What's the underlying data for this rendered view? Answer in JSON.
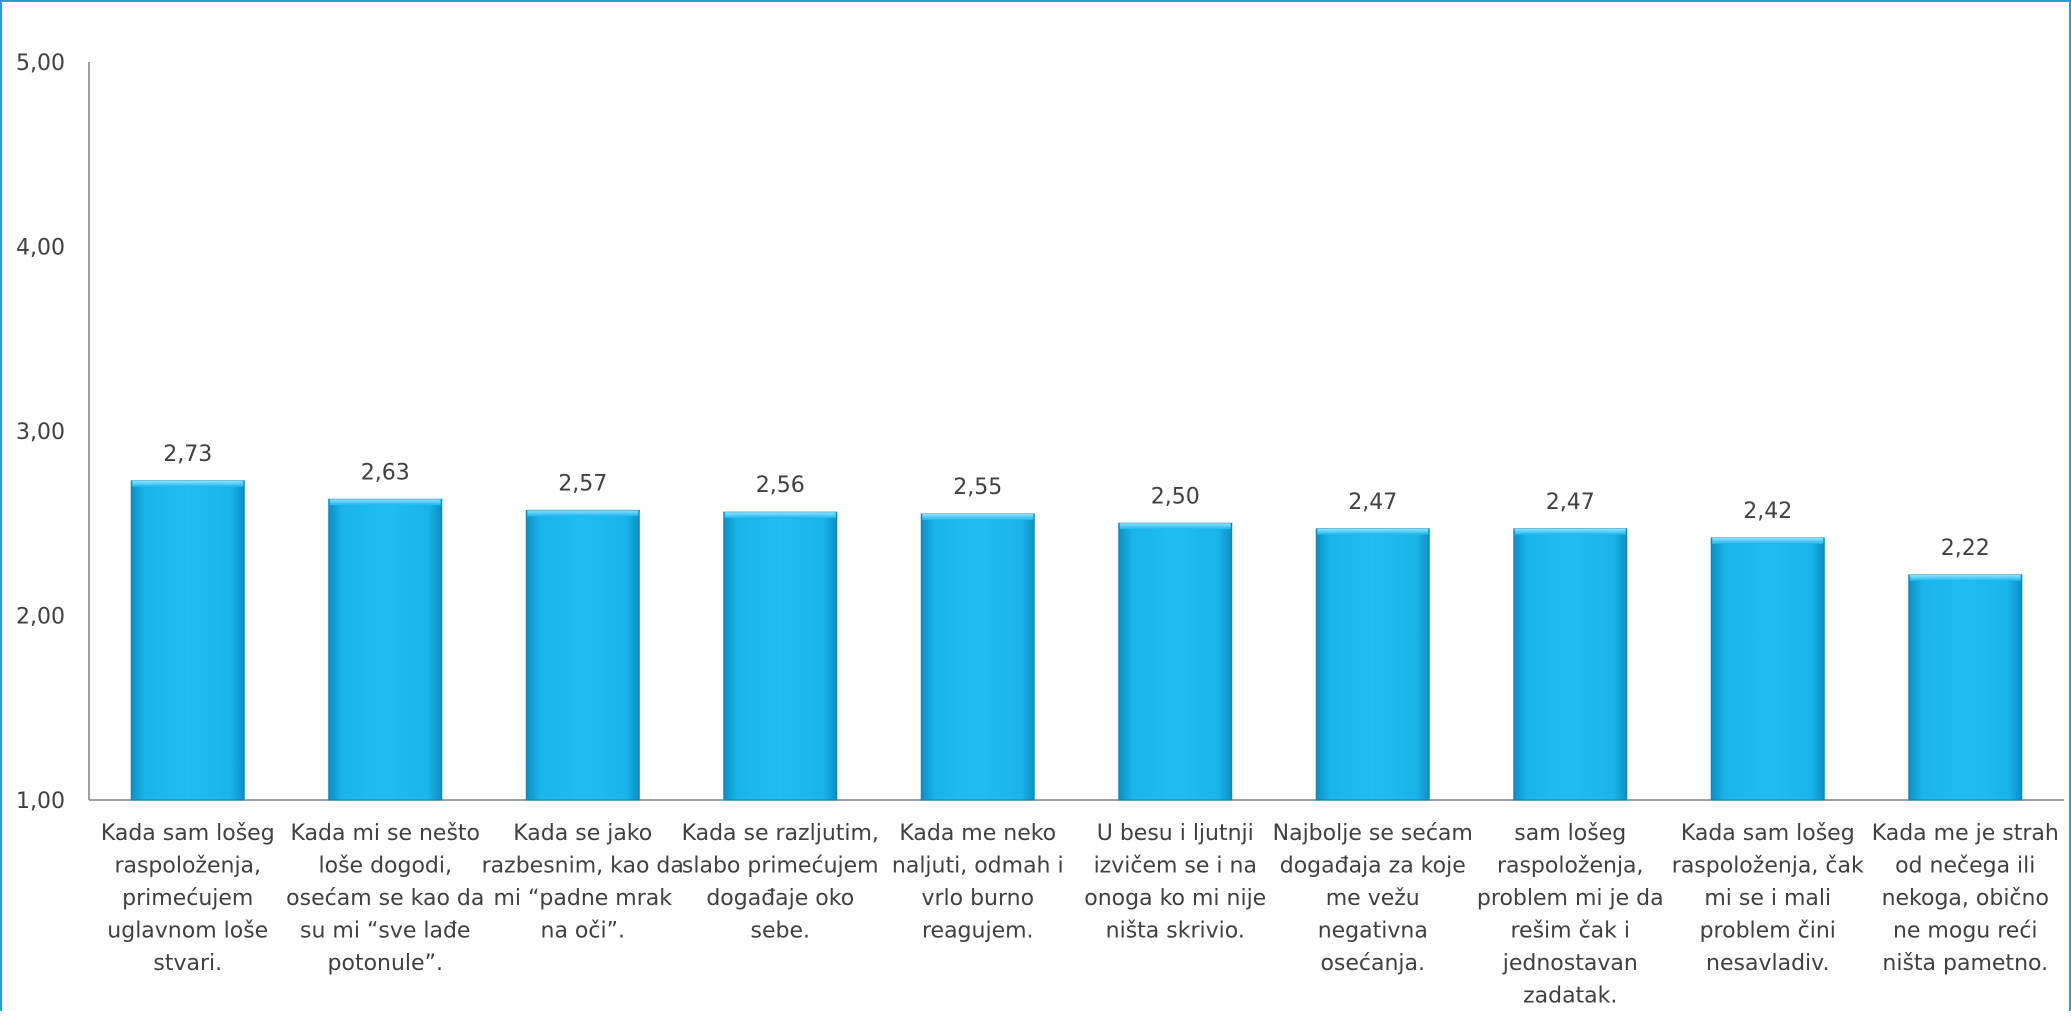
{
  "chart_data": {
    "type": "bar",
    "title": "",
    "xlabel": "",
    "ylabel": "",
    "ylim": [
      1,
      5
    ],
    "y_ticks": [
      "1,00",
      "2,00",
      "3,00",
      "4,00",
      "5,00"
    ],
    "grid": false,
    "legend": "none",
    "bar_color": "#19b5ea",
    "categories": [
      [
        "Kada sam lošeg",
        "raspoloženja,",
        "primećujem",
        "uglavnom loše",
        "stvari."
      ],
      [
        "Kada mi se nešto",
        "loše dogodi,",
        "osećam se kao da",
        "su mi “sve lađe",
        "potonule”."
      ],
      [
        "Kada se jako",
        "razbesnim, kao da",
        "mi “padne mrak",
        "na oči”."
      ],
      [
        "Kada se razljutim,",
        "slabo primećujem",
        "događaje oko",
        "sebe."
      ],
      [
        "Kada me neko",
        "naljuti, odmah i",
        "vrlo burno",
        "reagujem."
      ],
      [
        "U besu i ljutnji",
        "izvičem se i na",
        "onoga ko mi nije",
        "ništa skrivio."
      ],
      [
        "Najbolje se sećam",
        "događaja za koje",
        "me vežu",
        "negativna",
        "osećanja."
      ],
      [
        "sam lošeg",
        "raspoloženja,",
        "problem mi je da",
        "rešim čak i",
        "jednostavan",
        "zadatak."
      ],
      [
        "Kada sam lošeg",
        "raspoloženja, čak",
        "mi se i mali",
        "problem čini",
        "nesavladiv."
      ],
      [
        "Kada me je strah",
        "od nečega ili",
        "nekoga, obično",
        "ne mogu reći",
        "ništa pametno."
      ]
    ],
    "values": [
      2.73,
      2.63,
      2.57,
      2.56,
      2.55,
      2.5,
      2.47,
      2.47,
      2.42,
      2.22
    ],
    "value_labels": [
      "2,73",
      "2,63",
      "2,57",
      "2,56",
      "2,55",
      "2,50",
      "2,47",
      "2,47",
      "2,42",
      "2,22"
    ]
  }
}
